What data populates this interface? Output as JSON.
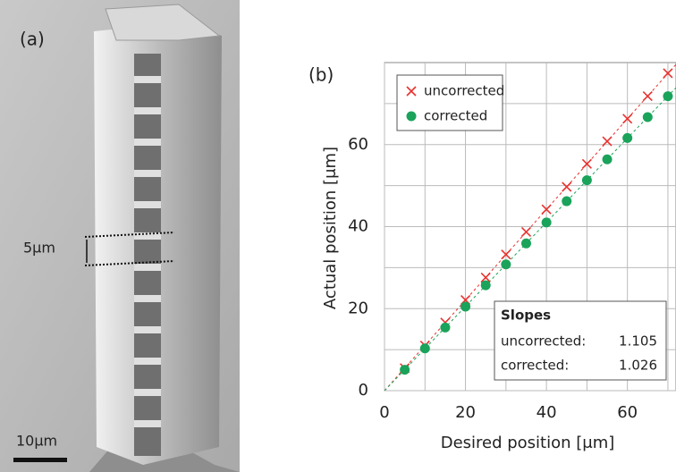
{
  "image_panel": {
    "label": "(a)",
    "dimension_label": "5μm",
    "scale_label": "10μm"
  },
  "chart_data": {
    "type": "scatter",
    "panel_label": "(b)",
    "x_label": "Desired position [μm]",
    "y_label": "Actual position [μm]",
    "x": [
      5,
      10,
      15,
      20,
      25,
      30,
      35,
      40,
      45,
      50,
      55,
      60,
      65,
      70
    ],
    "series": [
      {
        "name": "uncorrected",
        "color": "#e8322e",
        "marker": "x",
        "slope": 1.105,
        "values": [
          5.5,
          11,
          16.6,
          22.1,
          27.6,
          33.2,
          38.7,
          44.2,
          49.7,
          55.3,
          60.8,
          66.3,
          71.8,
          77.4
        ]
      },
      {
        "name": "corrected",
        "color": "#1aa35a",
        "marker": "circle",
        "slope": 1.026,
        "values": [
          5.1,
          10.3,
          15.4,
          20.5,
          25.7,
          30.8,
          35.9,
          41,
          46.2,
          51.3,
          56.4,
          61.6,
          66.7,
          71.8
        ]
      }
    ],
    "xlim": [
      0,
      72
    ],
    "ylim": [
      0,
      80
    ],
    "xticks": [
      0,
      20,
      40,
      60
    ],
    "yticks": [
      0,
      20,
      40,
      60
    ],
    "x_minor_ticks": [
      10,
      30,
      50,
      70
    ],
    "y_minor_ticks": [
      10,
      30,
      50,
      70
    ],
    "grid": true,
    "legend": "upper left",
    "slopes_box": {
      "title": "Slopes",
      "labels": [
        "uncorrected:",
        "corrected:"
      ]
    }
  }
}
